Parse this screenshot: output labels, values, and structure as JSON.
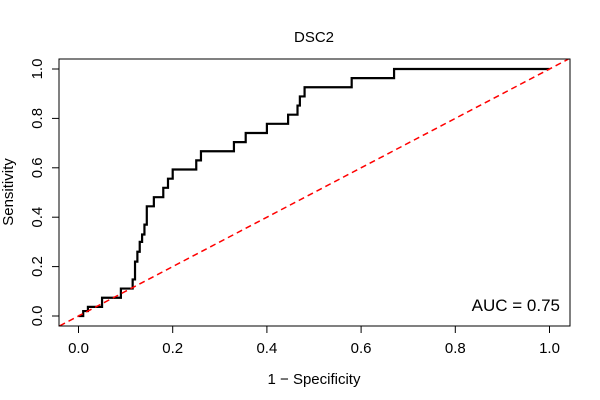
{
  "chart_data": {
    "type": "line",
    "title": "DSC2",
    "xlabel": "1 − Specificity",
    "ylabel": "Sensitivity",
    "xlim": [
      0,
      1
    ],
    "ylim": [
      0,
      1
    ],
    "xticks": [
      "0.0",
      "0.2",
      "0.4",
      "0.6",
      "0.8",
      "1.0"
    ],
    "yticks": [
      "0.0",
      "0.2",
      "0.4",
      "0.6",
      "0.8",
      "1.0"
    ],
    "grid": false,
    "annotation": "AUC = 0.75",
    "series": [
      {
        "color": "#000000",
        "style": "solid-step",
        "x": [
          0.0,
          0.01,
          0.01,
          0.02,
          0.02,
          0.05,
          0.05,
          0.09,
          0.09,
          0.115,
          0.115,
          0.12,
          0.12,
          0.125,
          0.125,
          0.13,
          0.13,
          0.135,
          0.135,
          0.14,
          0.14,
          0.145,
          0.145,
          0.16,
          0.16,
          0.18,
          0.18,
          0.19,
          0.19,
          0.2,
          0.2,
          0.25,
          0.25,
          0.26,
          0.26,
          0.33,
          0.33,
          0.355,
          0.355,
          0.4,
          0.4,
          0.445,
          0.445,
          0.465,
          0.465,
          0.47,
          0.47,
          0.48,
          0.48,
          0.49,
          0.49,
          0.58,
          0.58,
          0.67,
          0.67,
          1.0
        ],
        "y": [
          0.0,
          0.0,
          0.02,
          0.02,
          0.037,
          0.037,
          0.074,
          0.074,
          0.111,
          0.111,
          0.148,
          0.148,
          0.22,
          0.22,
          0.26,
          0.26,
          0.3,
          0.3,
          0.33,
          0.33,
          0.37,
          0.37,
          0.444,
          0.444,
          0.481,
          0.481,
          0.519,
          0.519,
          0.556,
          0.556,
          0.593,
          0.593,
          0.63,
          0.63,
          0.667,
          0.667,
          0.704,
          0.704,
          0.741,
          0.741,
          0.778,
          0.778,
          0.815,
          0.815,
          0.852,
          0.852,
          0.889,
          0.889,
          0.926,
          0.926,
          0.926,
          0.926,
          0.963,
          0.963,
          1.0,
          1.0
        ]
      },
      {
        "color": "#ff0000",
        "style": "dashed",
        "x": [
          -0.04,
          1.04
        ],
        "y": [
          -0.04,
          1.04
        ]
      }
    ]
  }
}
